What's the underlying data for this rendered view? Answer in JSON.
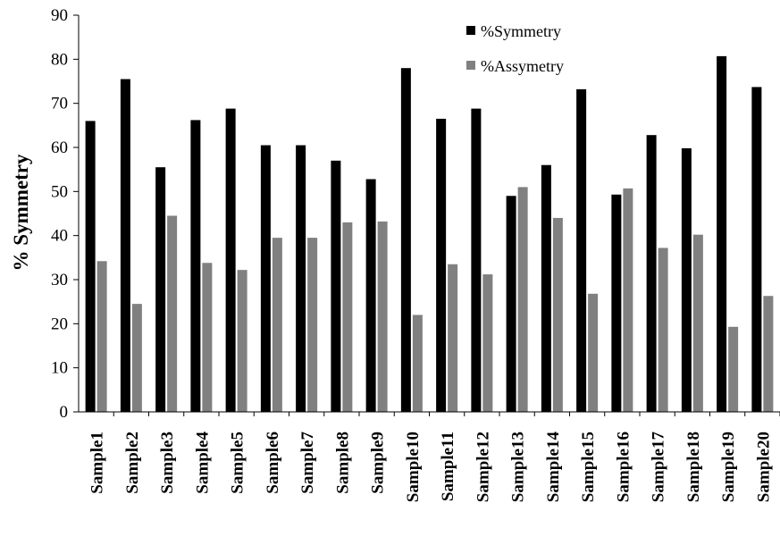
{
  "chart_data": {
    "type": "bar",
    "ylabel": "% Symmetry",
    "ylim": [
      0,
      90
    ],
    "yticks": [
      0,
      10,
      20,
      30,
      40,
      50,
      60,
      70,
      80,
      90
    ],
    "categories": [
      "Sample1",
      "Sample2",
      "Sample3",
      "Sample4",
      "Sample5",
      "Sample6",
      "Sample7",
      "Sample8",
      "Sample9",
      "Sample10",
      "Sample11",
      "Sample12",
      "Sample13",
      "Sample14",
      "Sample15",
      "Sample16",
      "Sample17",
      "Sample18",
      "Sample19",
      "Sample20"
    ],
    "series": [
      {
        "name": "%Symmetry",
        "color": "#000000",
        "values": [
          66,
          75.5,
          55.5,
          66.2,
          68.8,
          60.5,
          60.5,
          57,
          52.8,
          78,
          66.5,
          68.8,
          49,
          56,
          73.2,
          49.3,
          62.8,
          59.8,
          80.7,
          73.7
        ]
      },
      {
        "name": "%Assymetry",
        "color": "#808080",
        "values": [
          34.2,
          24.5,
          44.5,
          33.8,
          32.2,
          39.5,
          39.5,
          43,
          43.2,
          22,
          33.5,
          31.2,
          51,
          44,
          26.8,
          50.7,
          37.2,
          40.2,
          19.3,
          26.3
        ]
      }
    ],
    "legend": "top-right",
    "grid": false
  }
}
